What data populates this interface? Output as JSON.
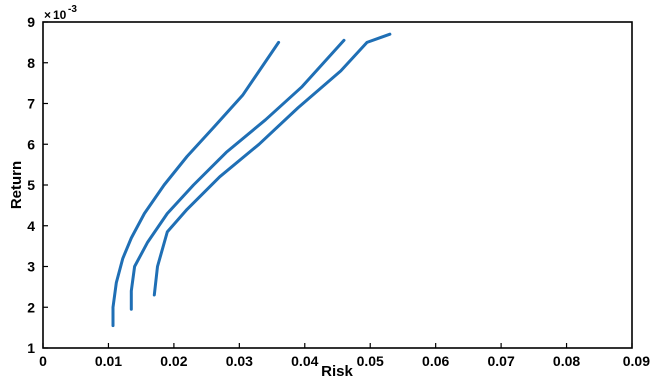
{
  "chart_data": {
    "type": "line",
    "xlabel": "Risk",
    "ylabel": "Return",
    "y_exponent_label": "10",
    "y_exponent_power": "-3",
    "y_exponent_prefix": "×",
    "xlim": [
      0,
      0.09
    ],
    "ylim": [
      1,
      9
    ],
    "x_ticks": [
      0,
      0.01,
      0.02,
      0.03,
      0.04,
      0.05,
      0.06,
      0.07,
      0.08,
      0.09
    ],
    "x_tick_labels": [
      "0",
      "0.01",
      "0.02",
      "0.03",
      "0.04",
      "0.05",
      "0.06",
      "0.07",
      "0.08",
      "0.09"
    ],
    "y_ticks": [
      1,
      2,
      3,
      4,
      5,
      6,
      7,
      8,
      9
    ],
    "y_tick_labels": [
      "1",
      "2",
      "3",
      "4",
      "5",
      "6",
      "7",
      "8",
      "9"
    ],
    "grid": false,
    "line_color": "#1f6fb5",
    "series": [
      {
        "points": [
          [
            0.0107,
            1.55
          ],
          [
            0.0107,
            2.0
          ],
          [
            0.0112,
            2.6
          ],
          [
            0.0122,
            3.2
          ],
          [
            0.0135,
            3.7
          ],
          [
            0.0155,
            4.3
          ],
          [
            0.0185,
            5.0
          ],
          [
            0.022,
            5.7
          ],
          [
            0.026,
            6.4
          ],
          [
            0.0305,
            7.2
          ],
          [
            0.036,
            8.5
          ]
        ]
      },
      {
        "points": [
          [
            0.0135,
            1.95
          ],
          [
            0.0135,
            2.4
          ],
          [
            0.014,
            3.0
          ],
          [
            0.016,
            3.6
          ],
          [
            0.019,
            4.3
          ],
          [
            0.023,
            5.0
          ],
          [
            0.028,
            5.8
          ],
          [
            0.034,
            6.6
          ],
          [
            0.0395,
            7.4
          ],
          [
            0.046,
            8.55
          ]
        ]
      },
      {
        "points": [
          [
            0.017,
            2.3
          ],
          [
            0.0175,
            3.0
          ],
          [
            0.019,
            3.85
          ],
          [
            0.022,
            4.4
          ],
          [
            0.027,
            5.2
          ],
          [
            0.033,
            6.0
          ],
          [
            0.039,
            6.9
          ],
          [
            0.0455,
            7.8
          ],
          [
            0.0495,
            8.5
          ],
          [
            0.053,
            8.7
          ]
        ]
      }
    ]
  }
}
